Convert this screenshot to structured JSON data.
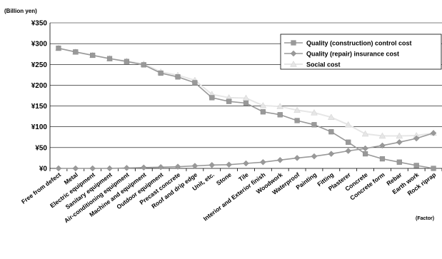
{
  "chart_data": {
    "type": "line",
    "unit_label": "(Billion yen)",
    "xunit_label": "(Factor)",
    "categories": [
      "Free from defect",
      "Metal",
      "Electric equipment",
      "Sanitary equipment",
      "Air-conditioning equipment",
      "Machine and equipment",
      "Outdoor equipment",
      "Precast concrete",
      "Roof and drip edge",
      "Unit, etc.",
      "Stone",
      "Tile",
      "Interior and Exterior finish",
      "Woodwork",
      "Waterproof",
      "Painting",
      "Fitting",
      "Plasterer",
      "Concrete",
      "Concrete form",
      "Rebar",
      "Earth work",
      "Rock riprap"
    ],
    "yticks": [
      "¥0",
      "¥50",
      "¥100",
      "¥150",
      "¥200",
      "¥250",
      "¥300",
      "¥350"
    ],
    "ylim": [
      0,
      350
    ],
    "grid": "horizontal",
    "legend_position": "top-right",
    "series": [
      {
        "name": "Quality (construction) control cost",
        "color": "#999999",
        "marker": "square",
        "values": [
          289,
          280,
          272,
          264,
          257,
          249,
          229,
          220,
          206,
          170,
          161,
          157,
          136,
          129,
          115,
          105,
          88,
          63,
          35,
          23,
          15,
          7,
          0
        ]
      },
      {
        "name": "Quality (repair) insurance cost",
        "color": "#999999",
        "marker": "diamond",
        "values": [
          0,
          0,
          0,
          0,
          1,
          2,
          3,
          4,
          6,
          8,
          9,
          12,
          15,
          20,
          25,
          29,
          35,
          42,
          48,
          55,
          63,
          72,
          85
        ]
      },
      {
        "name": "Social cost",
        "color": "#e6e6e6",
        "marker": "triangle",
        "values": [
          289,
          280,
          272,
          264,
          258,
          251,
          232,
          224,
          212,
          178,
          170,
          169,
          151,
          149,
          140,
          134,
          123,
          105,
          83,
          78,
          78,
          79,
          85
        ]
      }
    ]
  }
}
